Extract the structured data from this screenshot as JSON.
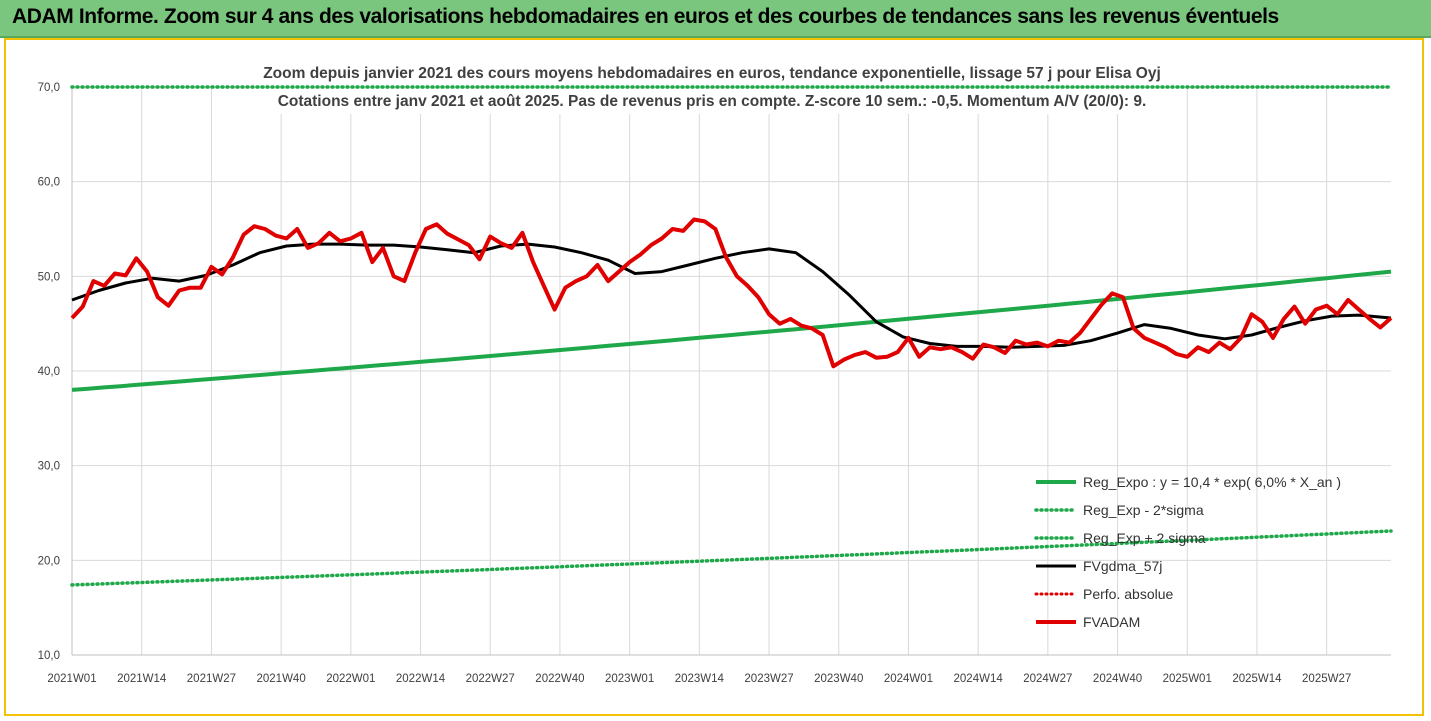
{
  "banner": {
    "title": "ADAM Informe. Zoom sur 4 ans des valorisations hebdomadaires en euros et des courbes de tendances sans les revenus éventuels"
  },
  "chart_data": {
    "type": "line",
    "title": "Zoom depuis janvier 2021 des cours moyens hebdomadaires en euros, tendance exponentielle, lissage 57 j pour Elisa Oyj",
    "subtitle": "Cotations entre janv 2021 et août 2025.  Pas de revenus pris en compte.  Z-score 10 sem.: -0,5.  Momentum A/V (20/0): 9.",
    "ylim": [
      10,
      70
    ],
    "yticks": [
      "10,0",
      "20,0",
      "30,0",
      "40,0",
      "50,0",
      "60,0",
      "70,0"
    ],
    "xticks": [
      "2021W01",
      "2021W14",
      "2021W27",
      "2021W40",
      "2022W01",
      "2022W14",
      "2022W27",
      "2022W40",
      "2023W01",
      "2023W14",
      "2023W27",
      "2023W40",
      "2024W01",
      "2024W14",
      "2024W27",
      "2024W40",
      "2025W01",
      "2025W14",
      "2025W27"
    ],
    "x_range_weeks": [
      0,
      246
    ],
    "legend_position": "bottom-right",
    "colors": {
      "green": "#1ea84a",
      "black": "#000000",
      "red": "#e00000",
      "red_dotted": "#e00000"
    },
    "series": [
      {
        "name": "Reg_Expo : y = 10,4 * exp( 6,0% *  X_an )",
        "style": "solid-green",
        "x": [
          0,
          246
        ],
        "y": [
          38.0,
          50.5
        ]
      },
      {
        "name": "Reg_Exp - 2*sigma",
        "style": "dotted-green",
        "x": [
          0,
          246
        ],
        "y": [
          17.4,
          23.1
        ]
      },
      {
        "name": "Reg_Exp + 2 sigma",
        "style": "dotted-green",
        "x": [
          0,
          246
        ],
        "y": [
          70.0,
          70.0
        ]
      },
      {
        "name": "FVgdma_57j",
        "style": "solid-black",
        "x": [
          0,
          5,
          10,
          15,
          20,
          25,
          30,
          35,
          40,
          45,
          50,
          55,
          60,
          65,
          70,
          75,
          80,
          85,
          90,
          95,
          100,
          105,
          110,
          115,
          120,
          125,
          130,
          135,
          140,
          145,
          150,
          155,
          160,
          165,
          170,
          175,
          180,
          185,
          190,
          195,
          200,
          205,
          210,
          215,
          220,
          225,
          230,
          235,
          240,
          246
        ],
        "y": [
          47.5,
          48.5,
          49.3,
          49.8,
          49.5,
          50.1,
          51.2,
          52.5,
          53.2,
          53.4,
          53.4,
          53.3,
          53.3,
          53.1,
          52.8,
          52.5,
          53.2,
          53.4,
          53.1,
          52.5,
          51.7,
          50.3,
          50.5,
          51.2,
          51.9,
          52.5,
          52.9,
          52.5,
          50.5,
          48.0,
          45.2,
          43.6,
          42.9,
          42.6,
          42.6,
          42.5,
          42.6,
          42.7,
          43.2,
          44.0,
          44.9,
          44.5,
          43.8,
          43.4,
          43.8,
          44.6,
          45.3,
          45.8,
          45.9,
          45.6
        ]
      },
      {
        "name": "Perfo. absolue",
        "style": "dotted-red",
        "x": [],
        "y": []
      },
      {
        "name": "FVADAM",
        "style": "solid-red-thick",
        "x": [
          0,
          2,
          4,
          6,
          8,
          10,
          12,
          14,
          16,
          18,
          20,
          22,
          24,
          26,
          28,
          30,
          32,
          34,
          36,
          38,
          40,
          42,
          44,
          46,
          48,
          50,
          52,
          54,
          56,
          58,
          60,
          62,
          64,
          66,
          68,
          70,
          72,
          74,
          76,
          78,
          80,
          82,
          84,
          86,
          88,
          90,
          92,
          94,
          96,
          98,
          100,
          102,
          104,
          106,
          108,
          110,
          112,
          114,
          116,
          118,
          120,
          122,
          124,
          126,
          128,
          130,
          132,
          134,
          136,
          138,
          140,
          142,
          144,
          146,
          148,
          150,
          152,
          154,
          156,
          158,
          160,
          162,
          164,
          166,
          168,
          170,
          172,
          174,
          176,
          178,
          180,
          182,
          184,
          186,
          188,
          190,
          192,
          194,
          196,
          198,
          200,
          202,
          204,
          206,
          208,
          210,
          212,
          214,
          216,
          218,
          220,
          222,
          224,
          226,
          228,
          230,
          232,
          234,
          236,
          238,
          240,
          242,
          244,
          246
        ],
        "y": [
          45.6,
          46.8,
          49.5,
          49.0,
          50.3,
          50.1,
          51.9,
          50.5,
          47.8,
          46.9,
          48.5,
          48.8,
          48.8,
          51.0,
          50.2,
          52.0,
          54.4,
          55.3,
          55.0,
          54.3,
          54.0,
          55.0,
          53.0,
          53.5,
          54.6,
          53.7,
          54.0,
          54.6,
          51.5,
          53.0,
          50.0,
          49.5,
          52.5,
          55.0,
          55.5,
          54.5,
          53.9,
          53.3,
          51.8,
          54.2,
          53.5,
          53.0,
          54.6,
          51.5,
          49.0,
          46.5,
          48.8,
          49.5,
          50.0,
          51.2,
          49.5,
          50.5,
          51.5,
          52.3,
          53.3,
          54.0,
          55.0,
          54.8,
          56.0,
          55.8,
          55.0,
          52.0,
          50.0,
          49.0,
          47.8,
          46.0,
          45.0,
          45.5,
          44.8,
          44.5,
          43.8,
          40.5,
          41.2,
          41.7,
          42.0,
          41.4,
          41.5,
          42.0,
          43.5,
          41.5,
          42.5,
          42.3,
          42.5,
          42.0,
          41.3,
          42.8,
          42.5,
          41.9,
          43.2,
          42.8,
          43.0,
          42.6,
          43.2,
          43.0,
          44.0,
          45.5,
          47.0,
          48.2,
          47.8,
          44.5,
          43.5,
          43.0,
          42.5,
          41.8,
          41.5,
          42.5,
          42.0,
          43.0,
          42.3,
          43.5,
          46.0,
          45.2,
          43.5,
          45.5,
          46.8,
          45.0,
          46.5,
          46.9,
          46.0,
          47.5,
          46.5,
          45.5,
          44.6,
          45.6
        ]
      }
    ]
  }
}
